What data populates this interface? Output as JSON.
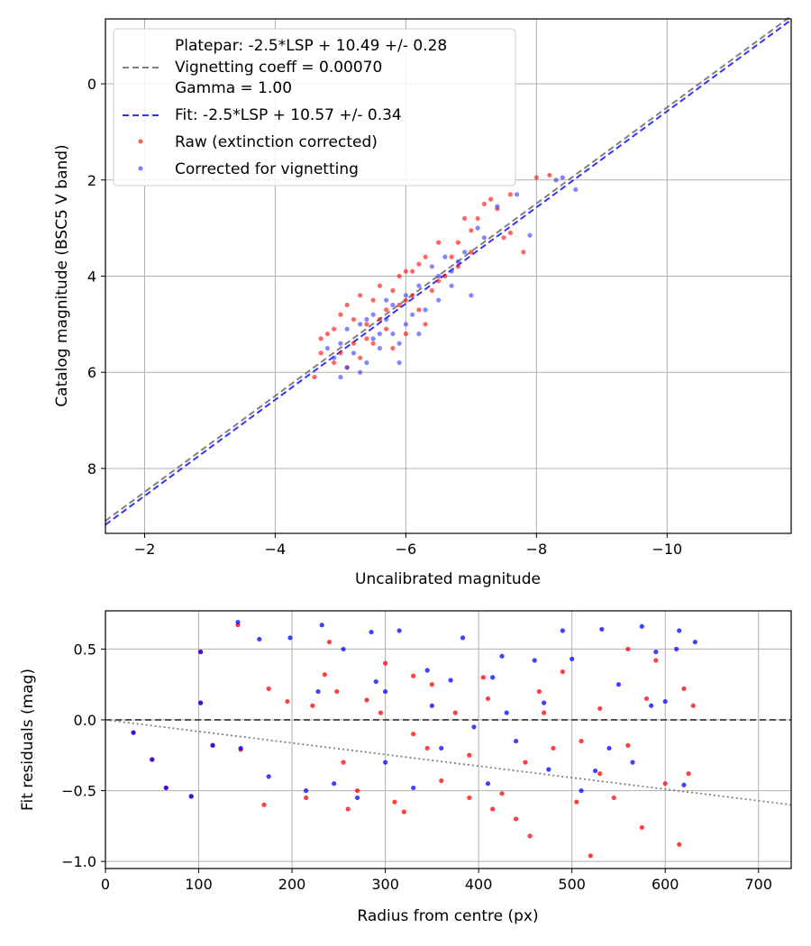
{
  "chart_data": [
    {
      "type": "scatter",
      "xlabel": "Uncalibrated magnitude",
      "ylabel": "Catalog magnitude (BSC5 V band)",
      "xlim": [
        -1.4,
        -11.9
      ],
      "ylim": [
        9.35,
        -1.35
      ],
      "xticks": [
        -2,
        -4,
        -6,
        -8,
        -10
      ],
      "xtick_labels": [
        "−2",
        "−4",
        "−6",
        "−8",
        "−10"
      ],
      "yticks": [
        0,
        2,
        4,
        6,
        8
      ],
      "ytick_labels": [
        "0",
        "2",
        "4",
        "6",
        "8"
      ],
      "grid": true,
      "legend_position": "upper-left",
      "legend": [
        {
          "label": "Platepar: -2.5*LSP + 10.49 +/- 0.28",
          "style": "none"
        },
        {
          "label": "Vignetting coeff = 0.00070",
          "style": "dashed-gray"
        },
        {
          "label": "Gamma = 1.00",
          "style": "none"
        },
        {
          "label": "Fit: -2.5*LSP + 10.57 +/- 0.34",
          "style": "dashed-blue"
        },
        {
          "label": "Raw (extinction corrected)",
          "style": "red-dot"
        },
        {
          "label": "Corrected for vignetting",
          "style": "blue-dot"
        }
      ],
      "lines": [
        {
          "name": "platepar",
          "slope": 1.0,
          "intercept": 10.49,
          "color": "#808080"
        },
        {
          "name": "fit",
          "slope": 1.0,
          "intercept": 10.57,
          "color": "#3333ff"
        }
      ],
      "series": [
        {
          "name": "Raw (extinction corrected)",
          "color": "#ff0000",
          "points": [
            [
              -8.2,
              1.9
            ],
            [
              -8.0,
              1.95
            ],
            [
              -7.6,
              2.3
            ],
            [
              -7.3,
              2.4
            ],
            [
              -7.1,
              2.8
            ],
            [
              -6.9,
              2.8
            ],
            [
              -7.6,
              3.1
            ],
            [
              -7.0,
              3.05
            ],
            [
              -6.8,
              3.3
            ],
            [
              -7.4,
              2.6
            ],
            [
              -7.2,
              2.5
            ],
            [
              -6.5,
              3.3
            ],
            [
              -6.3,
              3.6
            ],
            [
              -6.1,
              3.9
            ],
            [
              -6.2,
              3.75
            ],
            [
              -5.6,
              4.2
            ],
            [
              -5.8,
              4.3
            ],
            [
              -6.0,
              4.5
            ],
            [
              -5.5,
              4.5
            ],
            [
              -5.3,
              4.4
            ],
            [
              -5.1,
              4.6
            ],
            [
              -5.0,
              4.8
            ],
            [
              -4.9,
              5.1
            ],
            [
              -4.8,
              5.2
            ],
            [
              -4.7,
              5.3
            ],
            [
              -5.0,
              5.6
            ],
            [
              -4.9,
              5.8
            ],
            [
              -5.2,
              5.4
            ],
            [
              -5.4,
              5.0
            ],
            [
              -5.6,
              4.9
            ],
            [
              -5.7,
              5.1
            ],
            [
              -5.9,
              4.6
            ],
            [
              -6.2,
              4.7
            ],
            [
              -6.4,
              4.3
            ],
            [
              -6.6,
              4.0
            ],
            [
              -6.8,
              3.8
            ],
            [
              -7.0,
              3.5
            ],
            [
              -5.5,
              5.4
            ],
            [
              -5.3,
              5.7
            ],
            [
              -5.8,
              5.5
            ],
            [
              -6.0,
              5.2
            ],
            [
              -6.3,
              5.0
            ],
            [
              -4.6,
              6.1
            ],
            [
              -4.7,
              5.6
            ],
            [
              -5.1,
              5.9
            ],
            [
              -5.4,
              5.3
            ],
            [
              -5.7,
              4.7
            ],
            [
              -6.1,
              4.4
            ],
            [
              -6.5,
              4.1
            ],
            [
              -7.8,
              3.5
            ],
            [
              -7.5,
              3.2
            ],
            [
              -6.7,
              3.6
            ],
            [
              -6.0,
              3.9
            ],
            [
              -5.9,
              4.0
            ],
            [
              -5.2,
              4.9
            ]
          ]
        },
        {
          "name": "Corrected for vignetting",
          "color": "#3333ff",
          "points": [
            [
              -8.4,
              1.95
            ],
            [
              -8.6,
              2.2
            ],
            [
              -8.3,
              2.0
            ],
            [
              -7.7,
              2.3
            ],
            [
              -7.4,
              2.55
            ],
            [
              -7.1,
              3.0
            ],
            [
              -7.9,
              3.15
            ],
            [
              -7.2,
              3.2
            ],
            [
              -6.9,
              3.5
            ],
            [
              -6.8,
              3.7
            ],
            [
              -7.0,
              4.4
            ],
            [
              -6.7,
              3.9
            ],
            [
              -6.4,
              3.8
            ],
            [
              -6.5,
              4.0
            ],
            [
              -6.2,
              4.2
            ],
            [
              -6.0,
              4.4
            ],
            [
              -5.8,
              4.6
            ],
            [
              -5.7,
              4.5
            ],
            [
              -5.5,
              4.8
            ],
            [
              -5.3,
              5.0
            ],
            [
              -5.1,
              5.1
            ],
            [
              -5.0,
              5.4
            ],
            [
              -5.2,
              5.6
            ],
            [
              -5.4,
              5.8
            ],
            [
              -5.6,
              5.5
            ],
            [
              -5.8,
              5.2
            ],
            [
              -6.0,
              5.0
            ],
            [
              -6.3,
              4.7
            ],
            [
              -6.5,
              4.5
            ],
            [
              -6.7,
              4.2
            ],
            [
              -5.9,
              5.4
            ],
            [
              -5.6,
              5.2
            ],
            [
              -5.3,
              6.0
            ],
            [
              -5.0,
              6.1
            ],
            [
              -5.5,
              5.3
            ],
            [
              -5.1,
              5.9
            ],
            [
              -4.9,
              5.7
            ],
            [
              -4.8,
              5.5
            ],
            [
              -5.7,
              4.9
            ],
            [
              -6.1,
              4.8
            ],
            [
              -6.2,
              5.2
            ],
            [
              -5.4,
              4.9
            ],
            [
              -6.6,
              3.6
            ],
            [
              -5.9,
              5.8
            ]
          ]
        }
      ]
    },
    {
      "type": "scatter",
      "xlabel": "Radius from centre (px)",
      "ylabel": "Fit residuals (mag)",
      "xlim": [
        0,
        735
      ],
      "ylim": [
        -1.05,
        0.77
      ],
      "xticks": [
        0,
        100,
        200,
        300,
        400,
        500,
        600,
        700
      ],
      "xtick_labels": [
        "0",
        "100",
        "200",
        "300",
        "400",
        "500",
        "600",
        "700"
      ],
      "yticks": [
        0.5,
        0.0,
        -0.5,
        -1.0
      ],
      "ytick_labels": [
        "0.5",
        "0.0",
        "−0.5",
        "−1.0"
      ],
      "grid": true,
      "lines": [
        {
          "name": "zero",
          "style": "dashed",
          "color": "#555555",
          "points": [
            [
              0,
              0
            ],
            [
              735,
              0
            ]
          ]
        },
        {
          "name": "vignetting-model",
          "style": "dotted",
          "color": "#808080",
          "points": [
            [
              0,
              0
            ],
            [
              735,
              -0.6
            ]
          ]
        }
      ],
      "series": [
        {
          "name": "Raw (extinction corrected)",
          "color": "#ff0000",
          "points": [
            [
              30,
              -0.09
            ],
            [
              50,
              -0.28
            ],
            [
              65,
              -0.48
            ],
            [
              92,
              -0.54
            ],
            [
              102,
              0.48
            ],
            [
              102,
              0.12
            ],
            [
              115,
              -0.18
            ],
            [
              142,
              0.67
            ],
            [
              145,
              -0.21
            ],
            [
              170,
              -0.6
            ],
            [
              175,
              0.22
            ],
            [
              195,
              0.13
            ],
            [
              215,
              -0.55
            ],
            [
              222,
              0.1
            ],
            [
              235,
              0.32
            ],
            [
              248,
              0.2
            ],
            [
              260,
              -0.63
            ],
            [
              270,
              -0.5
            ],
            [
              280,
              0.14
            ],
            [
              295,
              0.05
            ],
            [
              310,
              -0.58
            ],
            [
              320,
              -0.65
            ],
            [
              330,
              0.31
            ],
            [
              345,
              -0.2
            ],
            [
              360,
              -0.43
            ],
            [
              375,
              0.05
            ],
            [
              390,
              -0.55
            ],
            [
              405,
              0.3
            ],
            [
              415,
              -0.63
            ],
            [
              425,
              -0.52
            ],
            [
              440,
              -0.7
            ],
            [
              455,
              -0.82
            ],
            [
              465,
              0.2
            ],
            [
              480,
              -0.2
            ],
            [
              490,
              0.34
            ],
            [
              505,
              -0.58
            ],
            [
              520,
              -0.96
            ],
            [
              530,
              -0.38
            ],
            [
              545,
              -0.55
            ],
            [
              560,
              -0.18
            ],
            [
              575,
              -0.76
            ],
            [
              590,
              0.42
            ],
            [
              600,
              -0.45
            ],
            [
              615,
              -0.88
            ],
            [
              625,
              -0.38
            ],
            [
              630,
              0.1
            ],
            [
              240,
              0.55
            ],
            [
              300,
              0.4
            ],
            [
              350,
              0.25
            ],
            [
              410,
              0.15
            ],
            [
              470,
              0.05
            ],
            [
              530,
              0.08
            ],
            [
              580,
              0.15
            ],
            [
              620,
              0.22
            ],
            [
              255,
              -0.3
            ],
            [
              330,
              -0.1
            ],
            [
              390,
              -0.25
            ],
            [
              450,
              -0.3
            ],
            [
              510,
              -0.15
            ],
            [
              560,
              0.5
            ]
          ]
        },
        {
          "name": "Corrected for vignetting",
          "color": "#0000ff",
          "points": [
            [
              30,
              -0.09
            ],
            [
              50,
              -0.28
            ],
            [
              65,
              -0.48
            ],
            [
              92,
              -0.54
            ],
            [
              102,
              0.48
            ],
            [
              102,
              0.12
            ],
            [
              115,
              -0.18
            ],
            [
              142,
              0.69
            ],
            [
              145,
              -0.2
            ],
            [
              165,
              0.57
            ],
            [
              175,
              -0.4
            ],
            [
              198,
              0.58
            ],
            [
              215,
              -0.5
            ],
            [
              232,
              0.67
            ],
            [
              245,
              -0.45
            ],
            [
              255,
              0.5
            ],
            [
              270,
              -0.55
            ],
            [
              285,
              0.62
            ],
            [
              300,
              0.2
            ],
            [
              315,
              0.63
            ],
            [
              330,
              -0.48
            ],
            [
              345,
              0.35
            ],
            [
              360,
              -0.2
            ],
            [
              383,
              0.58
            ],
            [
              395,
              -0.05
            ],
            [
              410,
              -0.45
            ],
            [
              425,
              0.45
            ],
            [
              440,
              -0.15
            ],
            [
              460,
              0.42
            ],
            [
              475,
              -0.35
            ],
            [
              490,
              0.63
            ],
            [
              500,
              0.43
            ],
            [
              510,
              -0.5
            ],
            [
              525,
              -0.36
            ],
            [
              532,
              0.64
            ],
            [
              550,
              0.25
            ],
            [
              565,
              -0.3
            ],
            [
              575,
              0.66
            ],
            [
              590,
              0.48
            ],
            [
              600,
              0.13
            ],
            [
              612,
              0.5
            ],
            [
              615,
              0.63
            ],
            [
              620,
              -0.46
            ],
            [
              632,
              0.55
            ],
            [
              228,
              0.2
            ],
            [
              290,
              0.27
            ],
            [
              350,
              0.1
            ],
            [
              415,
              0.3
            ],
            [
              470,
              0.12
            ],
            [
              540,
              -0.2
            ],
            [
              585,
              0.1
            ],
            [
              300,
              -0.3
            ],
            [
              370,
              0.28
            ],
            [
              430,
              0.05
            ]
          ]
        }
      ]
    }
  ]
}
